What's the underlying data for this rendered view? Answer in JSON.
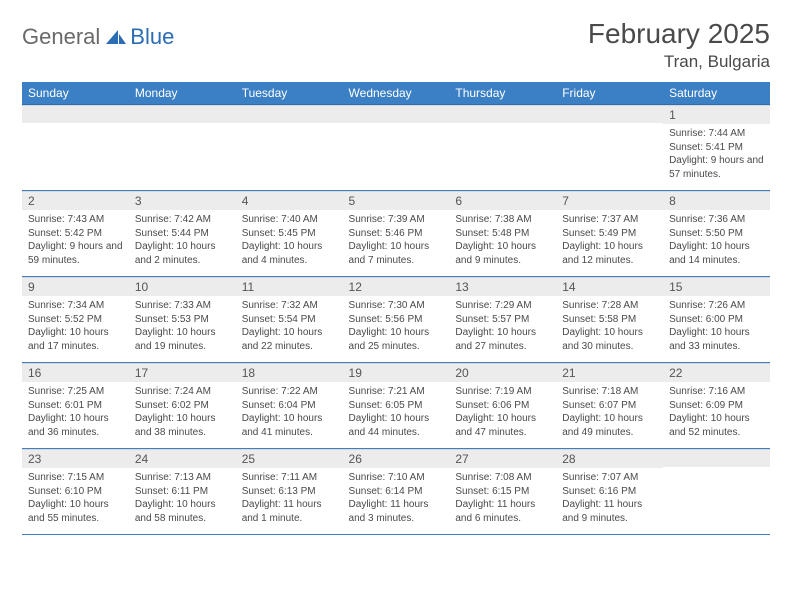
{
  "logo": {
    "text1": "General",
    "text2": "Blue"
  },
  "title": "February 2025",
  "subtitle": "Tran, Bulgaria",
  "columns": [
    "Sunday",
    "Monday",
    "Tuesday",
    "Wednesday",
    "Thursday",
    "Friday",
    "Saturday"
  ],
  "colors": {
    "header_bg": "#3b7fc4",
    "header_text": "#ffffff",
    "daynum_bg": "#ececec",
    "row_border": "#3b7fc4",
    "logo_accent": "#2a6db3",
    "text": "#4a4a4a"
  },
  "grid": [
    [
      null,
      null,
      null,
      null,
      null,
      null,
      {
        "n": "1",
        "sr": "7:44 AM",
        "ss": "5:41 PM",
        "dl": "9 hours and 57 minutes."
      }
    ],
    [
      {
        "n": "2",
        "sr": "7:43 AM",
        "ss": "5:42 PM",
        "dl": "9 hours and 59 minutes."
      },
      {
        "n": "3",
        "sr": "7:42 AM",
        "ss": "5:44 PM",
        "dl": "10 hours and 2 minutes."
      },
      {
        "n": "4",
        "sr": "7:40 AM",
        "ss": "5:45 PM",
        "dl": "10 hours and 4 minutes."
      },
      {
        "n": "5",
        "sr": "7:39 AM",
        "ss": "5:46 PM",
        "dl": "10 hours and 7 minutes."
      },
      {
        "n": "6",
        "sr": "7:38 AM",
        "ss": "5:48 PM",
        "dl": "10 hours and 9 minutes."
      },
      {
        "n": "7",
        "sr": "7:37 AM",
        "ss": "5:49 PM",
        "dl": "10 hours and 12 minutes."
      },
      {
        "n": "8",
        "sr": "7:36 AM",
        "ss": "5:50 PM",
        "dl": "10 hours and 14 minutes."
      }
    ],
    [
      {
        "n": "9",
        "sr": "7:34 AM",
        "ss": "5:52 PM",
        "dl": "10 hours and 17 minutes."
      },
      {
        "n": "10",
        "sr": "7:33 AM",
        "ss": "5:53 PM",
        "dl": "10 hours and 19 minutes."
      },
      {
        "n": "11",
        "sr": "7:32 AM",
        "ss": "5:54 PM",
        "dl": "10 hours and 22 minutes."
      },
      {
        "n": "12",
        "sr": "7:30 AM",
        "ss": "5:56 PM",
        "dl": "10 hours and 25 minutes."
      },
      {
        "n": "13",
        "sr": "7:29 AM",
        "ss": "5:57 PM",
        "dl": "10 hours and 27 minutes."
      },
      {
        "n": "14",
        "sr": "7:28 AM",
        "ss": "5:58 PM",
        "dl": "10 hours and 30 minutes."
      },
      {
        "n": "15",
        "sr": "7:26 AM",
        "ss": "6:00 PM",
        "dl": "10 hours and 33 minutes."
      }
    ],
    [
      {
        "n": "16",
        "sr": "7:25 AM",
        "ss": "6:01 PM",
        "dl": "10 hours and 36 minutes."
      },
      {
        "n": "17",
        "sr": "7:24 AM",
        "ss": "6:02 PM",
        "dl": "10 hours and 38 minutes."
      },
      {
        "n": "18",
        "sr": "7:22 AM",
        "ss": "6:04 PM",
        "dl": "10 hours and 41 minutes."
      },
      {
        "n": "19",
        "sr": "7:21 AM",
        "ss": "6:05 PM",
        "dl": "10 hours and 44 minutes."
      },
      {
        "n": "20",
        "sr": "7:19 AM",
        "ss": "6:06 PM",
        "dl": "10 hours and 47 minutes."
      },
      {
        "n": "21",
        "sr": "7:18 AM",
        "ss": "6:07 PM",
        "dl": "10 hours and 49 minutes."
      },
      {
        "n": "22",
        "sr": "7:16 AM",
        "ss": "6:09 PM",
        "dl": "10 hours and 52 minutes."
      }
    ],
    [
      {
        "n": "23",
        "sr": "7:15 AM",
        "ss": "6:10 PM",
        "dl": "10 hours and 55 minutes."
      },
      {
        "n": "24",
        "sr": "7:13 AM",
        "ss": "6:11 PM",
        "dl": "10 hours and 58 minutes."
      },
      {
        "n": "25",
        "sr": "7:11 AM",
        "ss": "6:13 PM",
        "dl": "11 hours and 1 minute."
      },
      {
        "n": "26",
        "sr": "7:10 AM",
        "ss": "6:14 PM",
        "dl": "11 hours and 3 minutes."
      },
      {
        "n": "27",
        "sr": "7:08 AM",
        "ss": "6:15 PM",
        "dl": "11 hours and 6 minutes."
      },
      {
        "n": "28",
        "sr": "7:07 AM",
        "ss": "6:16 PM",
        "dl": "11 hours and 9 minutes."
      },
      null
    ]
  ],
  "labels": {
    "sunrise": "Sunrise:",
    "sunset": "Sunset:",
    "daylight": "Daylight:"
  }
}
